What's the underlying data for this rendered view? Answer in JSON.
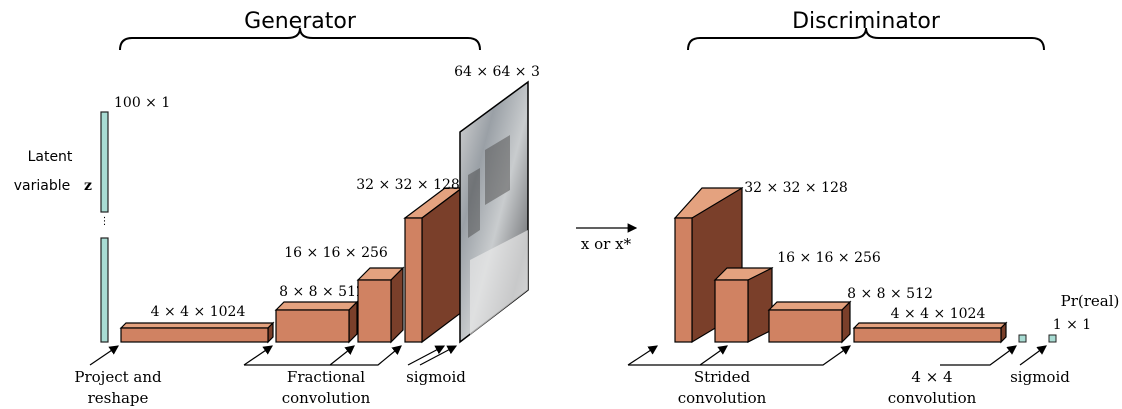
{
  "generator": {
    "title": "Generator",
    "latent_label_line1": "Latent",
    "latent_label_line2": "variable",
    "latent_symbol": "z",
    "latent_dim": "100 × 1",
    "blocks": [
      {
        "label": "4 × 4 × 1024"
      },
      {
        "label": "8 × 8 × 512"
      },
      {
        "label": "16 × 16 × 256"
      },
      {
        "label": "32 × 32 × 128"
      }
    ],
    "image_label": "64 × 64 × 3",
    "bottom_labels": {
      "project_line1": "Project and",
      "project_line2": "reshape",
      "frac_line1": "Fractional",
      "frac_line2": "convolution",
      "sigmoid": "sigmoid"
    }
  },
  "middle": {
    "input_label": "x or x*"
  },
  "discriminator": {
    "title": "Discriminator",
    "blocks": [
      {
        "label": "32 × 32 × 128"
      },
      {
        "label": "16 × 16 × 256"
      },
      {
        "label": "8 × 8 × 512"
      },
      {
        "label": "4 × 4 × 1024"
      }
    ],
    "output_prob": "Pr(real)",
    "output_dim": "1 × 1",
    "bottom_labels": {
      "strided_line1": "Strided",
      "strided_line2": "convolution",
      "conv44_line1": "4 × 4",
      "conv44_line2": "convolution",
      "sigmoid": "sigmoid"
    }
  },
  "colors": {
    "block_front": "#D08262",
    "block_top": "#E4A27F",
    "block_side": "#7A3F2A",
    "latent": "#A8DCD3"
  }
}
